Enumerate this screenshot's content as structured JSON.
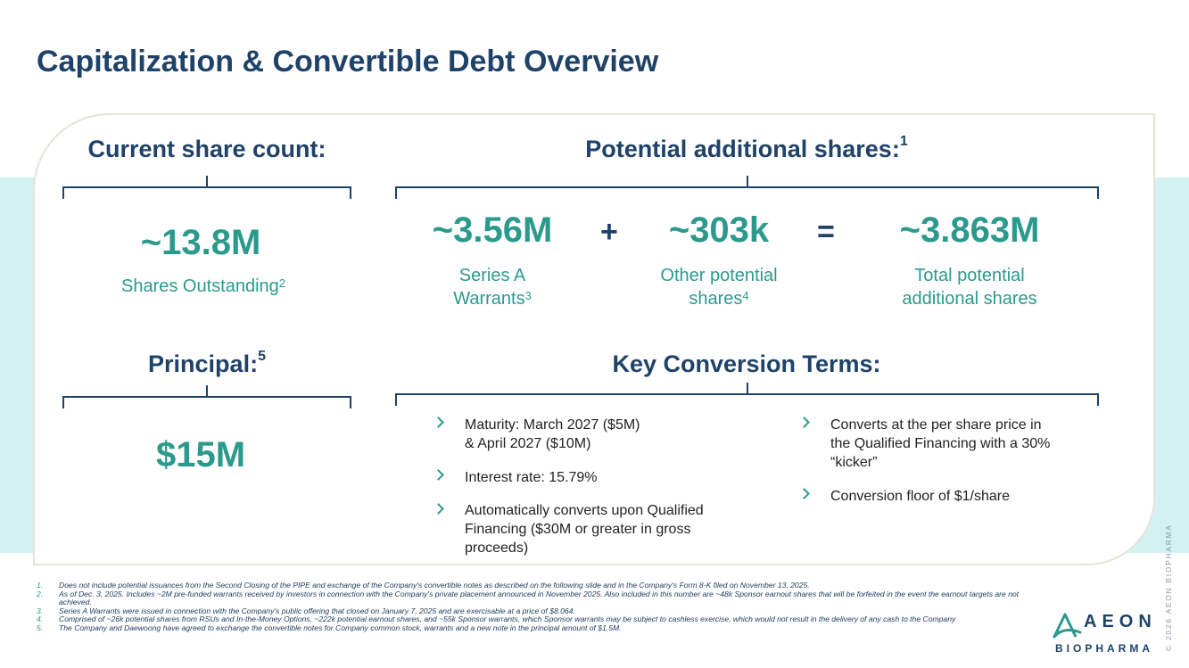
{
  "title": "Capitalization & Convertible Debt Overview",
  "current_share_count": {
    "heading": "Current share count:",
    "value": "~13.8M",
    "label": "Shares Outstanding",
    "label_sup": "2"
  },
  "potential_shares": {
    "heading": "Potential additional shares:",
    "heading_sup": "1",
    "plus": "+",
    "equals": "=",
    "items": [
      {
        "value": "~3.56M",
        "line1": "Series A",
        "line2": "Warrants",
        "sup": "3"
      },
      {
        "value": "~303k",
        "line1": "Other potential",
        "line2": "shares",
        "sup": "4"
      },
      {
        "value": "~3.863M",
        "line1": "Total potential",
        "line2": "additional shares",
        "sup": ""
      }
    ]
  },
  "principal": {
    "heading": "Principal:",
    "heading_sup": "5",
    "value": "$15M"
  },
  "conversion_terms": {
    "heading": "Key Conversion Terms:",
    "left": [
      "Maturity: March 2027 ($5M)\n& April 2027 ($10M)",
      "Interest rate: 15.79%",
      "Automatically converts upon Qualified\nFinancing ($30M or greater in gross\nproceeds)"
    ],
    "right": [
      "Converts at the per share price in\nthe Qualified Financing with a 30%\n“kicker”",
      "Conversion floor of $1/share"
    ]
  },
  "footnotes": [
    {
      "n": "1.",
      "text": "Does not include potential issuances from the Second Closing of the PIPE and exchange of the Company's convertible notes as described on the following slide and in the Company's Form 8-K filed on November 13, 2025."
    },
    {
      "n": "2.",
      "text": "As of Dec. 3, 2025.  Includes ~2M pre-funded warrants received by investors in connection with the Company's private placement announced in November 2025.  Also included in this number are ~48k Sponsor earnout shares that will be forfeited in the event the earnout targets are not achieved."
    },
    {
      "n": "3.",
      "text": "Series A Warrants were issued in connection with the Company's public offering that closed on January 7, 2025 and are exercisable at a price of $8.064."
    },
    {
      "n": "4.",
      "text": "Comprised of ~26k potential shares from RSUs and In-the-Money Options, ~222k potential earnout shares, and ~55k Sponsor warrants, which Sponsor warrants may be subject to cashless exercise, which would not result in the delivery of any cash to the Company"
    },
    {
      "n": "5.",
      "text": "The Company and Daewoong have agreed to exchange the convertible notes for Company common stock, warrants and a new note in the principal amount of $1.5M."
    }
  ],
  "logo": {
    "word": "AEON",
    "sub": "BIOPHARMA"
  },
  "copyright": "© 2026 AEON BIOPHARMA",
  "colors": {
    "navy": "#1f4268",
    "teal": "#2a9a8c",
    "band": "#d3f1f1"
  }
}
